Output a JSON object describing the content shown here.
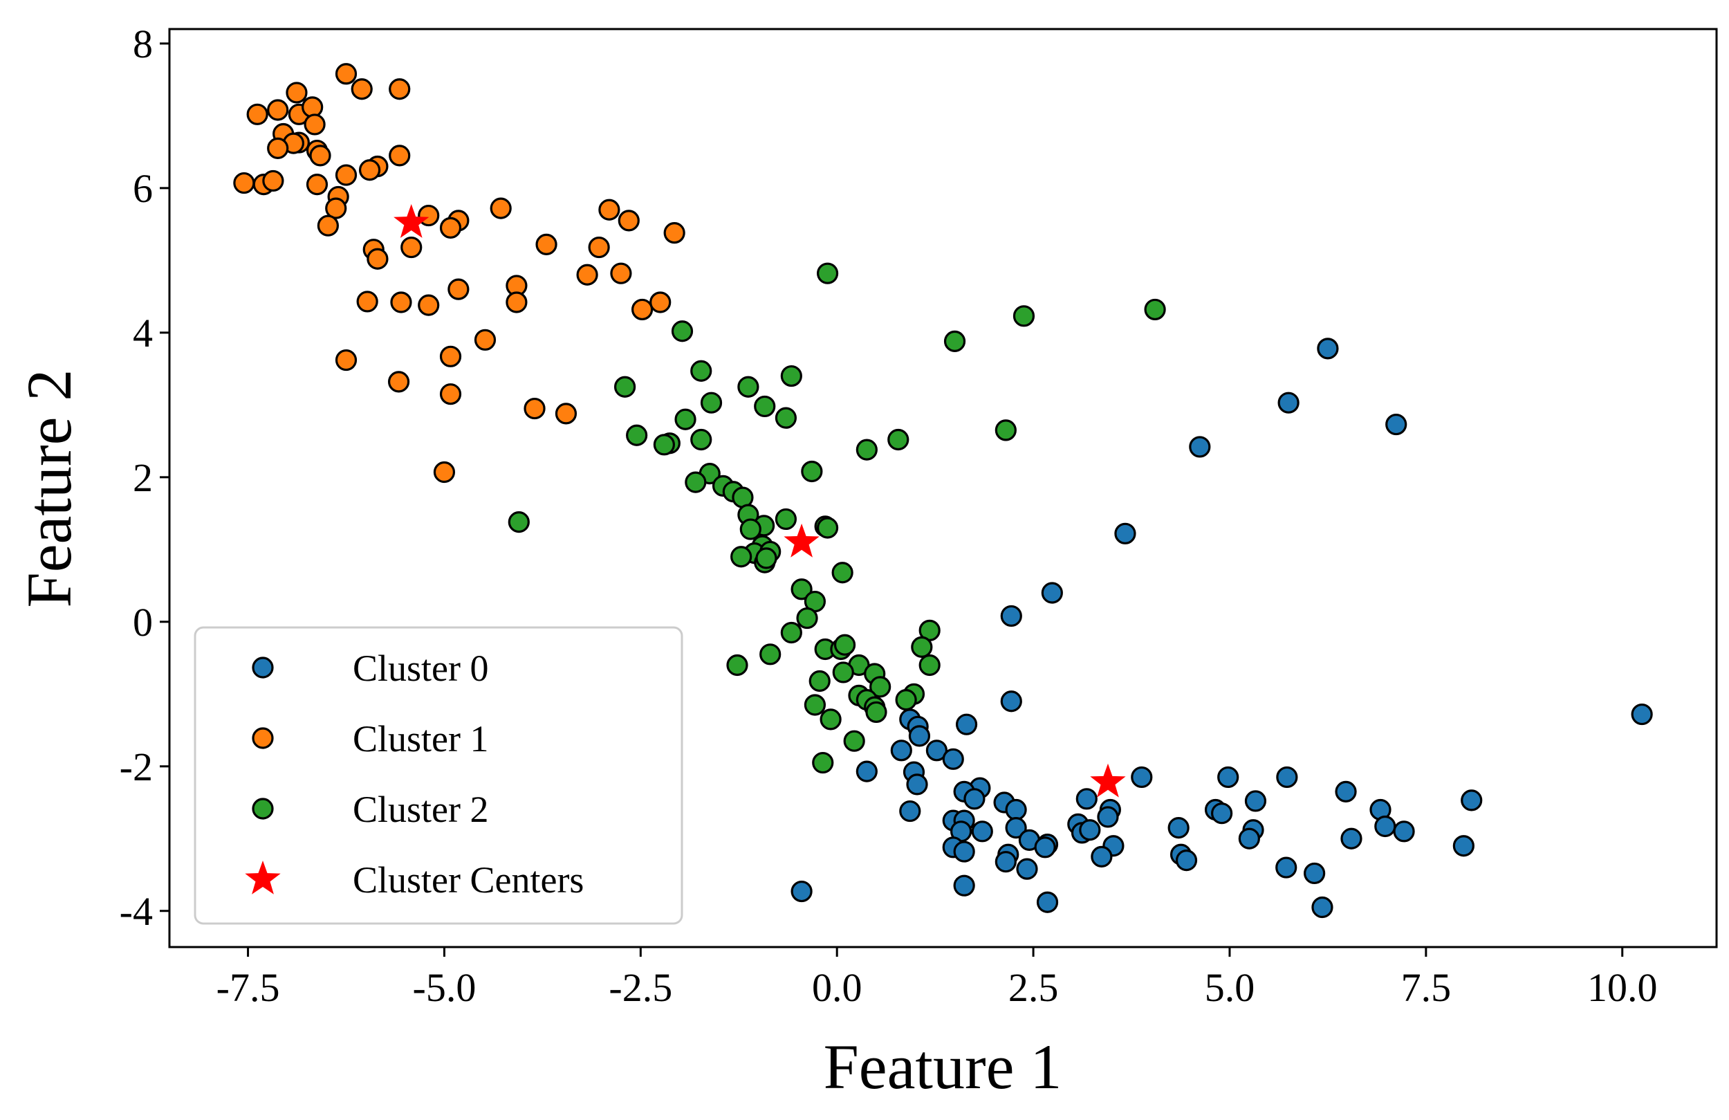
{
  "chart_data": {
    "type": "scatter",
    "title": "",
    "xlabel": "Feature 1",
    "ylabel": "Feature 2",
    "xlim": [
      -8.5,
      11.2
    ],
    "ylim": [
      -4.5,
      8.2
    ],
    "xticks": [
      -7.5,
      -5.0,
      -2.5,
      0.0,
      2.5,
      5.0,
      7.5,
      10.0
    ],
    "xtick_labels": [
      "-7.5",
      "-5.0",
      "-2.5",
      "0.0",
      "2.5",
      "5.0",
      "7.5",
      "10.0"
    ],
    "yticks": [
      -4,
      -2,
      0,
      2,
      4,
      6,
      8
    ],
    "ytick_labels": [
      "-4",
      "-2",
      "0",
      "2",
      "4",
      "6",
      "8"
    ],
    "grid": false,
    "legend_position": "lower-left",
    "series": [
      {
        "name": "Cluster 0",
        "color": "#1f77b4",
        "marker": "circle",
        "points": [
          [
            6.25,
            3.78
          ],
          [
            5.75,
            3.03
          ],
          [
            7.12,
            2.73
          ],
          [
            4.62,
            2.42
          ],
          [
            3.67,
            1.22
          ],
          [
            2.74,
            0.4
          ],
          [
            2.22,
            0.08
          ],
          [
            10.25,
            -1.28
          ],
          [
            2.22,
            -1.1
          ],
          [
            0.93,
            -1.35
          ],
          [
            1.03,
            -1.45
          ],
          [
            1.05,
            -1.58
          ],
          [
            1.65,
            -1.42
          ],
          [
            0.82,
            -1.78
          ],
          [
            1.27,
            -1.78
          ],
          [
            1.48,
            -1.9
          ],
          [
            0.38,
            -2.07
          ],
          [
            0.98,
            -2.08
          ],
          [
            1.02,
            -2.25
          ],
          [
            1.82,
            -2.3
          ],
          [
            1.62,
            -2.35
          ],
          [
            1.75,
            -2.45
          ],
          [
            3.88,
            -2.15
          ],
          [
            4.98,
            -2.15
          ],
          [
            5.73,
            -2.15
          ],
          [
            2.13,
            -2.5
          ],
          [
            2.28,
            -2.6
          ],
          [
            3.18,
            -2.45
          ],
          [
            3.48,
            -2.6
          ],
          [
            5.33,
            -2.48
          ],
          [
            6.48,
            -2.35
          ],
          [
            8.08,
            -2.47
          ],
          [
            0.93,
            -2.62
          ],
          [
            1.48,
            -2.75
          ],
          [
            1.62,
            -2.75
          ],
          [
            2.28,
            -2.85
          ],
          [
            3.07,
            -2.8
          ],
          [
            3.12,
            -2.92
          ],
          [
            3.22,
            -2.88
          ],
          [
            3.45,
            -2.7
          ],
          [
            4.35,
            -2.85
          ],
          [
            4.82,
            -2.6
          ],
          [
            4.9,
            -2.65
          ],
          [
            5.3,
            -2.88
          ],
          [
            5.25,
            -3.0
          ],
          [
            6.92,
            -2.6
          ],
          [
            6.98,
            -2.83
          ],
          [
            7.22,
            -2.9
          ],
          [
            1.58,
            -2.9
          ],
          [
            1.85,
            -2.9
          ],
          [
            2.45,
            -3.02
          ],
          [
            2.68,
            -3.08
          ],
          [
            1.48,
            -3.12
          ],
          [
            1.62,
            -3.18
          ],
          [
            2.65,
            -3.12
          ],
          [
            2.18,
            -3.22
          ],
          [
            2.15,
            -3.32
          ],
          [
            3.52,
            -3.1
          ],
          [
            3.37,
            -3.25
          ],
          [
            4.38,
            -3.22
          ],
          [
            4.45,
            -3.3
          ],
          [
            6.55,
            -3.0
          ],
          [
            7.98,
            -3.1
          ],
          [
            5.72,
            -3.4
          ],
          [
            6.08,
            -3.48
          ],
          [
            2.42,
            -3.42
          ],
          [
            1.62,
            -3.65
          ],
          [
            -0.45,
            -3.73
          ],
          [
            2.68,
            -3.88
          ],
          [
            6.18,
            -3.95
          ]
        ]
      },
      {
        "name": "Cluster 1",
        "color": "#ff7f0e",
        "marker": "circle",
        "points": [
          [
            -6.25,
            7.58
          ],
          [
            -5.57,
            7.37
          ],
          [
            -6.05,
            7.37
          ],
          [
            -6.88,
            7.32
          ],
          [
            -7.12,
            7.08
          ],
          [
            -7.38,
            7.02
          ],
          [
            -6.85,
            7.02
          ],
          [
            -6.68,
            7.12
          ],
          [
            -6.65,
            6.88
          ],
          [
            -7.05,
            6.75
          ],
          [
            -6.85,
            6.63
          ],
          [
            -6.92,
            6.62
          ],
          [
            -7.12,
            6.55
          ],
          [
            -6.62,
            6.52
          ],
          [
            -6.58,
            6.45
          ],
          [
            -5.57,
            6.45
          ],
          [
            -5.85,
            6.3
          ],
          [
            -5.95,
            6.25
          ],
          [
            -7.55,
            6.07
          ],
          [
            -7.3,
            6.05
          ],
          [
            -7.18,
            6.1
          ],
          [
            -6.62,
            6.05
          ],
          [
            -6.25,
            6.18
          ],
          [
            -6.35,
            5.88
          ],
          [
            -6.38,
            5.72
          ],
          [
            -6.48,
            5.48
          ],
          [
            -5.2,
            5.62
          ],
          [
            -4.82,
            5.55
          ],
          [
            -4.92,
            5.45
          ],
          [
            -4.28,
            5.72
          ],
          [
            -2.9,
            5.7
          ],
          [
            -2.65,
            5.55
          ],
          [
            -2.07,
            5.38
          ],
          [
            -5.9,
            5.15
          ],
          [
            -5.85,
            5.02
          ],
          [
            -5.42,
            5.18
          ],
          [
            -3.7,
            5.22
          ],
          [
            -3.03,
            5.18
          ],
          [
            -3.18,
            4.8
          ],
          [
            -2.75,
            4.82
          ],
          [
            -4.08,
            4.65
          ],
          [
            -4.82,
            4.6
          ],
          [
            -4.08,
            4.42
          ],
          [
            -5.98,
            4.43
          ],
          [
            -5.55,
            4.42
          ],
          [
            -5.2,
            4.38
          ],
          [
            -2.48,
            4.32
          ],
          [
            -2.25,
            4.42
          ],
          [
            -4.48,
            3.9
          ],
          [
            -6.25,
            3.62
          ],
          [
            -4.92,
            3.67
          ],
          [
            -5.58,
            3.32
          ],
          [
            -4.92,
            3.15
          ],
          [
            -3.85,
            2.95
          ],
          [
            -3.45,
            2.88
          ],
          [
            -5.0,
            2.07
          ]
        ]
      },
      {
        "name": "Cluster 2",
        "color": "#2ca02c",
        "marker": "circle",
        "points": [
          [
            -0.12,
            4.82
          ],
          [
            4.05,
            4.32
          ],
          [
            2.38,
            4.23
          ],
          [
            1.5,
            3.88
          ],
          [
            -1.97,
            4.02
          ],
          [
            -1.73,
            3.47
          ],
          [
            -0.58,
            3.4
          ],
          [
            -2.7,
            3.25
          ],
          [
            -1.13,
            3.25
          ],
          [
            -1.6,
            3.03
          ],
          [
            -0.92,
            2.98
          ],
          [
            -0.65,
            2.82
          ],
          [
            -1.93,
            2.8
          ],
          [
            -2.55,
            2.58
          ],
          [
            -2.13,
            2.47
          ],
          [
            -2.2,
            2.45
          ],
          [
            -1.73,
            2.52
          ],
          [
            0.78,
            2.52
          ],
          [
            0.38,
            2.38
          ],
          [
            2.15,
            2.65
          ],
          [
            -1.62,
            2.05
          ],
          [
            -0.32,
            2.08
          ],
          [
            -1.8,
            1.93
          ],
          [
            -1.45,
            1.88
          ],
          [
            -1.32,
            1.8
          ],
          [
            -1.2,
            1.72
          ],
          [
            -1.13,
            1.48
          ],
          [
            -0.65,
            1.42
          ],
          [
            -4.05,
            1.38
          ],
          [
            -0.93,
            1.33
          ],
          [
            -1.1,
            1.28
          ],
          [
            -0.15,
            1.32
          ],
          [
            -0.12,
            1.3
          ],
          [
            -0.95,
            1.05
          ],
          [
            -1.05,
            0.95
          ],
          [
            -0.85,
            0.97
          ],
          [
            -1.22,
            0.9
          ],
          [
            -0.92,
            0.82
          ],
          [
            -0.9,
            0.88
          ],
          [
            -0.45,
            0.45
          ],
          [
            -0.28,
            0.28
          ],
          [
            0.07,
            0.68
          ],
          [
            -0.38,
            0.05
          ],
          [
            -0.58,
            -0.15
          ],
          [
            1.18,
            -0.12
          ],
          [
            1.08,
            -0.35
          ],
          [
            -0.15,
            -0.38
          ],
          [
            0.05,
            -0.38
          ],
          [
            0.1,
            -0.32
          ],
          [
            -0.85,
            -0.45
          ],
          [
            -1.27,
            -0.6
          ],
          [
            1.18,
            -0.6
          ],
          [
            0.28,
            -0.6
          ],
          [
            0.08,
            -0.7
          ],
          [
            0.48,
            -0.72
          ],
          [
            -0.22,
            -0.82
          ],
          [
            0.55,
            -0.9
          ],
          [
            0.98,
            -1.0
          ],
          [
            0.28,
            -1.02
          ],
          [
            0.38,
            -1.08
          ],
          [
            0.88,
            -1.08
          ],
          [
            -0.28,
            -1.15
          ],
          [
            0.48,
            -1.18
          ],
          [
            0.5,
            -1.25
          ],
          [
            -0.08,
            -1.35
          ],
          [
            0.22,
            -1.65
          ],
          [
            -0.18,
            -1.95
          ]
        ]
      }
    ],
    "centers": {
      "name": "Cluster Centers",
      "color": "#ff0000",
      "marker": "star",
      "points": [
        [
          -5.42,
          5.52
        ],
        [
          -0.45,
          1.1
        ],
        [
          3.45,
          -2.22
        ]
      ]
    }
  }
}
